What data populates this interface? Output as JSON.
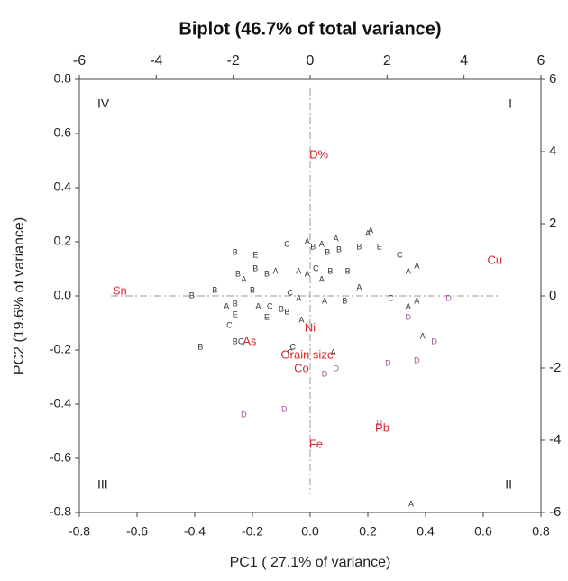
{
  "chart_data": {
    "type": "biplot",
    "title": "Biplot (46.7% of total variance)",
    "x_label": "PC1 ( 27.1% of variance)",
    "y_label": "PC2 (19.6% of variance)",
    "xlim": [
      -0.8,
      0.8
    ],
    "xticks": [
      -0.8,
      -0.6,
      -0.4,
      -0.2,
      {
        "value": 0,
        "label": "0.0"
      },
      0.2,
      0.4,
      0.6,
      0.8
    ],
    "ylim": [
      -0.8,
      0.8
    ],
    "yticks": [
      -0.8,
      -0.6,
      -0.4,
      -0.2,
      {
        "value": 0,
        "label": "0.0"
      },
      0.2,
      0.4,
      0.6,
      0.8
    ],
    "x2lim": [
      -6,
      6
    ],
    "x2ticks": [
      -6,
      -4,
      -2,
      0,
      2,
      4,
      6
    ],
    "y2lim": [
      -6,
      6
    ],
    "y2ticks": [
      -6,
      -4,
      -2,
      0,
      2,
      4,
      6
    ],
    "quadrants": [
      "I",
      "II",
      "III",
      "IV"
    ],
    "series": [
      {
        "name": "A",
        "color": "#333333",
        "x": [
          0.35,
          0.39,
          0.34,
          0.37,
          0.17,
          0.05,
          0.08,
          -0.29,
          -0.23,
          -0.12,
          -0.01,
          0.04,
          0.09,
          0.2,
          0.21,
          0.34,
          0.37,
          -0.04,
          -0.04,
          -0.03,
          0.04,
          -0.01,
          -0.18
        ],
        "values": [
          -0.77,
          -0.15,
          -0.04,
          -0.02,
          0.03,
          -0.02,
          -0.21,
          -0.04,
          0.06,
          0.09,
          0.2,
          0.19,
          0.21,
          0.23,
          0.24,
          0.09,
          0.11,
          0.09,
          -0.01,
          -0.09,
          0.06,
          0.08,
          -0.04
        ]
      },
      {
        "name": "B",
        "color": "#333333",
        "x": [
          0.12,
          -0.38,
          -0.26,
          -0.41,
          -0.33,
          -0.26,
          -0.2,
          -0.25,
          -0.19,
          -0.26,
          -0.15,
          0.01,
          0.06,
          0.1,
          0.17,
          0.13,
          0.07,
          -0.08,
          -0.1
        ],
        "values": [
          -0.02,
          -0.19,
          -0.17,
          0.0,
          0.02,
          -0.03,
          0.02,
          0.08,
          0.1,
          0.16,
          0.08,
          0.18,
          0.16,
          0.17,
          0.18,
          0.09,
          0.09,
          -0.06,
          -0.05
        ]
      },
      {
        "name": "C",
        "color": "#333333",
        "x": [
          0.28,
          -0.06,
          -0.07,
          -0.24,
          -0.28,
          -0.08,
          0.31,
          -0.07,
          -0.14,
          0.02
        ],
        "values": [
          -0.01,
          -0.19,
          -0.21,
          -0.17,
          -0.11,
          0.19,
          0.15,
          0.01,
          -0.04,
          0.1
        ]
      },
      {
        "name": "D",
        "color": "#a0509e",
        "x": [
          -0.23,
          -0.09,
          0.24,
          0.05,
          0.09,
          0.27,
          0.37,
          0.43,
          0.34,
          0.48
        ],
        "values": [
          -0.44,
          -0.42,
          -0.47,
          -0.29,
          -0.27,
          -0.25,
          -0.24,
          -0.17,
          -0.08,
          -0.01
        ]
      },
      {
        "name": "E",
        "color": "#333333",
        "x": [
          -0.26,
          -0.19,
          0.24,
          -0.15
        ],
        "values": [
          -0.07,
          0.15,
          0.18,
          -0.08
        ]
      }
    ],
    "loadings": {
      "color": "#d9262b",
      "labels": [
        "Sn",
        "Cu",
        "D%",
        "Ni",
        "As",
        "Grain size",
        "Co",
        "Fe",
        "Pb"
      ],
      "x": [
        -0.66,
        0.64,
        0.03,
        0.0,
        -0.21,
        -0.01,
        -0.03,
        0.02,
        0.25
      ],
      "y": [
        0.017,
        0.13,
        0.52,
        -0.12,
        -0.17,
        -0.22,
        -0.27,
        -0.55,
        -0.49
      ]
    }
  }
}
